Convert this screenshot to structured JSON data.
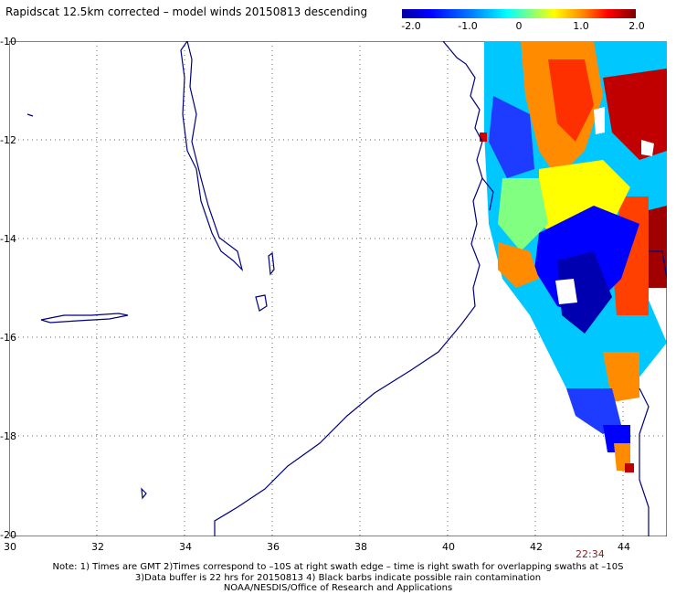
{
  "title": "Rapidscat 12.5km corrected – model winds 20150813 descending",
  "colorbar": {
    "labels": [
      "-2.0",
      "-1.0",
      "0",
      "1.0",
      "2.0"
    ],
    "range": [
      -2.0,
      2.0
    ]
  },
  "axes": {
    "x_ticks": [
      "30",
      "32",
      "34",
      "36",
      "38",
      "40",
      "42",
      "44"
    ],
    "y_ticks": [
      "-10",
      "-12",
      "-14",
      "-16",
      "-18",
      "-20"
    ]
  },
  "time_label": "22:34",
  "notes": [
    "Note: 1) Times are GMT 2)Times correspond to –10S at right swath edge – time is right swath for overlapping swaths at –10S",
    "3)Data buffer is 22 hrs for 20150813 4) Black barbs indicate possible rain contamination",
    "NOAA/NESDIS/Office of Research and Applications"
  ],
  "colors": {
    "coast": "#000080",
    "grid": "#666666",
    "low": "#0000ff",
    "high": "#ff0000"
  }
}
